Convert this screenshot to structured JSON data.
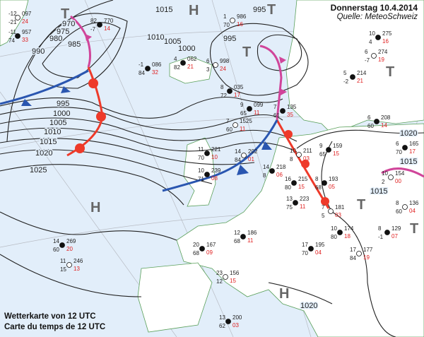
{
  "header": {
    "title": "Donnerstag 10.4.2014",
    "source": "Quelle: MeteoSchweiz"
  },
  "caption": {
    "line1": "Wetterkarte von 12 UTC",
    "line2": "Carte du temps de 12 UTC"
  },
  "colors": {
    "sea": "#e2eefa",
    "land": "#ffffff",
    "coast": "#5aa05a",
    "cold_front": "#2a56b0",
    "warm_front": "#ee3a2a",
    "occlusion": "#d0459a",
    "isobar": "#222222",
    "grid": "#b8bcc4"
  },
  "isobar_labels": [
    "970",
    "975",
    "980",
    "985",
    "990",
    "995",
    "1000",
    "1005",
    "1010",
    "1015",
    "1020",
    "1025",
    "1015",
    "1010",
    "1005",
    "1000",
    "995",
    "995",
    "1020",
    "1015",
    "1015",
    "1020"
  ],
  "pressure_centers": [
    "T",
    "T",
    "T",
    "H",
    "T",
    "H",
    "T",
    "T",
    "H"
  ],
  "stations": [
    {
      "p": "097",
      "t": "-12",
      "td": "-21",
      "v": "24"
    },
    {
      "p": "957",
      "t": "-11",
      "td": "74",
      "v": "33"
    },
    {
      "p": "770",
      "t": "82",
      "td": "-7",
      "v": "14"
    },
    {
      "p": "986",
      "t": "1",
      "td": "70",
      "v": "16"
    },
    {
      "p": "086",
      "t": "-1",
      "td": "84",
      "v": "32"
    },
    {
      "p": "062",
      "t": "4",
      "td": "82",
      "v": "21"
    },
    {
      "p": "998",
      "t": "6",
      "td": "3",
      "v": "24"
    },
    {
      "p": "035",
      "t": "8",
      "td": "72",
      "v": "17"
    },
    {
      "p": "099",
      "t": "9",
      "td": "65",
      "v": "11"
    },
    {
      "p": "1525",
      "t": "7",
      "td": "60",
      "v": "11"
    },
    {
      "p": "135",
      "t": "7",
      "td": "61",
      "v": "35"
    },
    {
      "p": "221",
      "t": "11",
      "td": "70",
      "v": "10"
    },
    {
      "p": "202",
      "t": "14",
      "td": "84",
      "v": "01"
    },
    {
      "p": "239",
      "t": "10",
      "td": "71",
      "v": "08"
    },
    {
      "p": "218",
      "t": "14",
      "td": "8",
      "v": "06"
    },
    {
      "p": "211",
      "t": "10",
      "td": "8",
      "v": "03"
    },
    {
      "p": "159",
      "t": "9",
      "td": "65",
      "v": "15"
    },
    {
      "p": "193",
      "t": "8",
      "td": "68",
      "v": "05"
    },
    {
      "p": "181",
      "t": "7",
      "td": "5",
      "v": "03"
    },
    {
      "p": "215",
      "t": "16",
      "td": "80",
      "v": "15"
    },
    {
      "p": "223",
      "t": "13",
      "td": "75",
      "v": "11"
    },
    {
      "p": "154",
      "t": "10",
      "td": "2",
      "v": "00"
    },
    {
      "p": "165",
      "t": "6",
      "td": "70",
      "v": "17"
    },
    {
      "p": "208",
      "t": "6",
      "td": "60",
      "v": "14"
    },
    {
      "p": "136",
      "t": "8",
      "td": "60",
      "v": "04"
    },
    {
      "p": "129",
      "t": "8",
      "td": "-1",
      "v": "07"
    },
    {
      "p": "174",
      "t": "10",
      "td": "80",
      "v": "18"
    },
    {
      "p": "177",
      "t": "17",
      "td": "84",
      "v": "19"
    },
    {
      "p": "195",
      "t": "17",
      "td": "70",
      "v": "04"
    },
    {
      "p": "269",
      "t": "14",
      "td": "60",
      "v": "20"
    },
    {
      "p": "246",
      "t": "11",
      "td": "15",
      "v": "13"
    },
    {
      "p": "186",
      "t": "12",
      "td": "68",
      "v": "11"
    },
    {
      "p": "167",
      "t": "20",
      "td": "68",
      "v": "09"
    },
    {
      "p": "156",
      "t": "23",
      "td": "12",
      "v": "15"
    },
    {
      "p": "200",
      "t": "13",
      "td": "62",
      "v": "03"
    },
    {
      "p": "275",
      "t": "10",
      "td": "4",
      "v": "16"
    },
    {
      "p": "274",
      "t": "6",
      "td": "-7",
      "v": "19"
    },
    {
      "p": "214",
      "t": "5",
      "td": "-2",
      "v": "21"
    }
  ]
}
